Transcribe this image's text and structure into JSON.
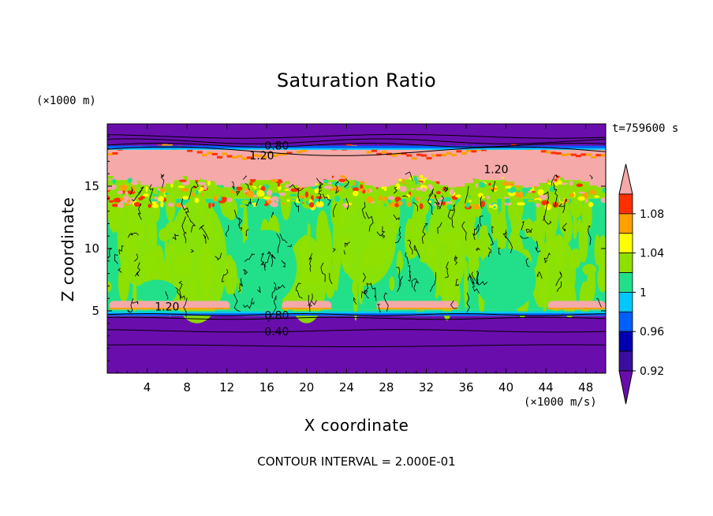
{
  "chart_data": {
    "type": "heatmap",
    "title": "Saturation Ratio",
    "xlabel": "X coordinate",
    "ylabel": "Z coordinate",
    "x_unit": "(×1000 m/s)",
    "y_unit": "(×1000 m)",
    "time_label": "t=759600 s",
    "footer": "CONTOUR INTERVAL = 2.000E-01",
    "xlim": [
      0,
      50
    ],
    "ylim": [
      0,
      20
    ],
    "x_ticks": [
      4,
      8,
      12,
      16,
      20,
      24,
      28,
      32,
      36,
      40,
      44,
      48
    ],
    "y_ticks": [
      5,
      10,
      15
    ],
    "contour_labels": [
      {
        "text": "0.80",
        "x": 17,
        "z": 18.2
      },
      {
        "text": "1.20",
        "x": 15.5,
        "z": 17.4
      },
      {
        "text": "1.20",
        "x": 39,
        "z": 16.3
      },
      {
        "text": "1.20",
        "x": 6,
        "z": 5.3
      },
      {
        "text": "0.80",
        "x": 17,
        "z": 4.6
      },
      {
        "text": "0.40",
        "x": 17,
        "z": 3.3
      }
    ],
    "colorbar": {
      "labels": [
        "1.08",
        "1.04",
        "1",
        "0.96",
        "0.92"
      ],
      "levels": [
        0.9,
        0.92,
        0.94,
        0.96,
        0.98,
        1.0,
        1.02,
        1.04,
        1.06,
        1.08,
        1.1
      ],
      "colors": [
        "#6a0dad",
        "#3a0fa0",
        "#0000b0",
        "#0060ff",
        "#00c8ff",
        "#22e08a",
        "#8ee000",
        "#ffff00",
        "#ffa000",
        "#ff3000",
        "#f5a9a9"
      ]
    },
    "layers": [
      {
        "z_from": 0,
        "z_to": 4.6,
        "color": "#6a0dad"
      },
      {
        "z_from": 4.6,
        "z_to": 5.1,
        "color": "#22e08a"
      },
      {
        "z_from": 5.1,
        "z_to": 14.0,
        "color": "#22e08a"
      },
      {
        "z_from": 14.0,
        "z_to": 15.5,
        "color": "#8ee000"
      },
      {
        "z_from": 15.5,
        "z_to": 18.0,
        "color": "#f5a9a9"
      },
      {
        "z_from": 18.0,
        "z_to": 20,
        "color": "#6a0dad"
      }
    ]
  }
}
